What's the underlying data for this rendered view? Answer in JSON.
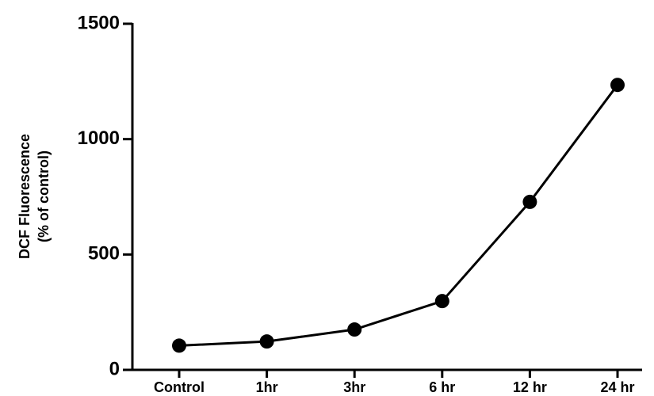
{
  "chart_data": {
    "type": "line",
    "ylabel": [
      "DCF Fluorescence",
      "(% of control)"
    ],
    "categories": [
      "Control",
      "1hr",
      "3hr",
      "6 hr",
      "12 hr",
      "24 hr"
    ],
    "values": [
      105,
      123,
      175,
      298,
      728,
      1235
    ],
    "color": "#000000",
    "ylim": [
      0,
      1500
    ],
    "yticks": [
      0,
      500,
      1000,
      1500
    ]
  }
}
